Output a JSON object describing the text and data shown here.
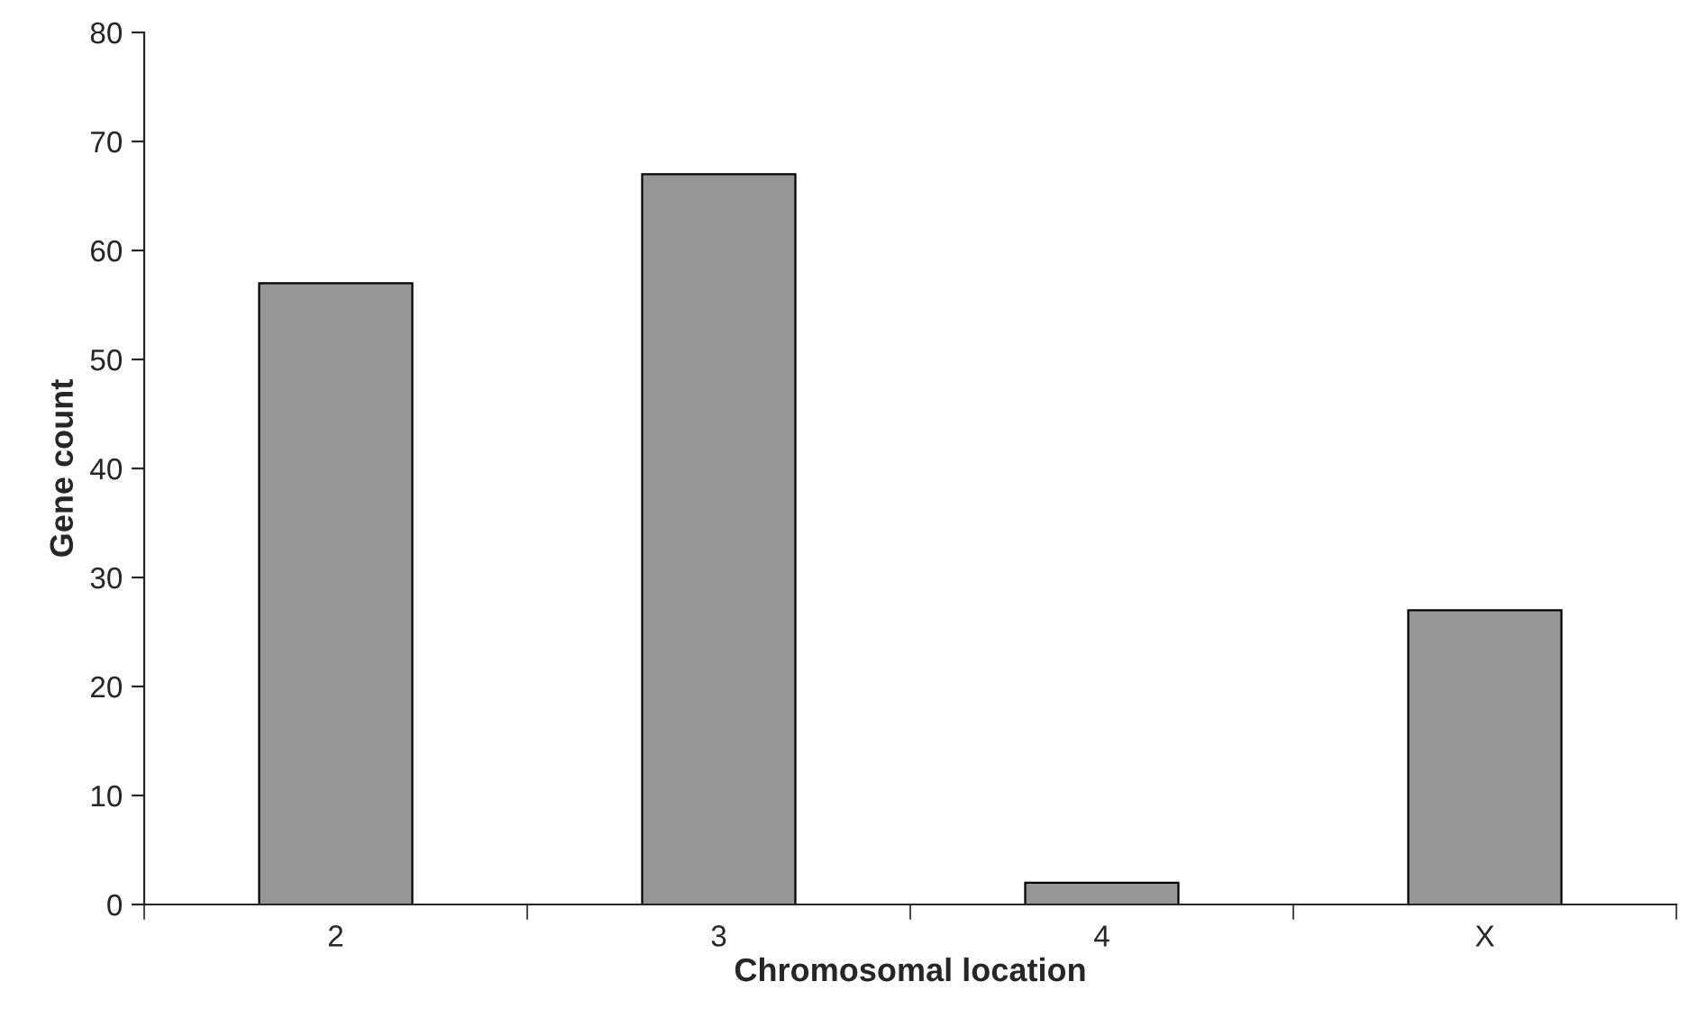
{
  "chart_data": {
    "type": "bar",
    "xlabel": "Chromosomal location",
    "ylabel": "Gene count",
    "categories": [
      "2",
      "3",
      "4",
      "X"
    ],
    "values": [
      57,
      67,
      2,
      27
    ],
    "color": "#969696",
    "ylim": [
      0,
      80
    ],
    "yticks": [
      0,
      10,
      20,
      30,
      40,
      50,
      60,
      70,
      80
    ],
    "grid": false,
    "legend": false
  }
}
